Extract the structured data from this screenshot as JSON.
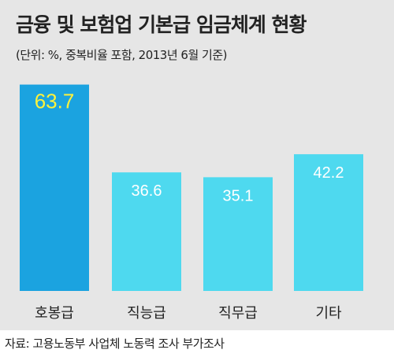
{
  "chart_data": {
    "type": "bar",
    "title": "금융 및 보험업 기본급 임금체계 현황",
    "subtitle": "(단위: %, 중복비율 포함, 2013년 6월 기준)",
    "categories": [
      "호봉급",
      "직능급",
      "직무급",
      "기타"
    ],
    "values": [
      63.7,
      36.6,
      35.1,
      42.2
    ],
    "value_labels": [
      "63.7",
      "36.6",
      "35.1",
      "42.2"
    ],
    "ylim": [
      0,
      70
    ],
    "grid": false,
    "legend": "none",
    "colors": {
      "highlight_bar": "#1ba3e0",
      "bar": "#4ed9ef",
      "highlight_label": "#fff23a",
      "label": "#ffffff",
      "background": "#e6e6e6"
    }
  },
  "source": "자료: 고용노동부 사업체 노동력 조사 부가조사"
}
